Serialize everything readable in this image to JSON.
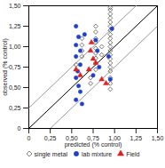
{
  "chart_data": {
    "type": "scatter",
    "x_label": "predicted (% control)",
    "y_label": "observed (% control)",
    "xlim": [
      0,
      1.5
    ],
    "ylim": [
      0,
      1.5
    ],
    "xticks": [
      0,
      {
        "value": 0.25,
        "label": "0,25"
      },
      {
        "value": 0.5,
        "label": "0,50"
      },
      {
        "value": 0.75,
        "label": "0,75"
      },
      {
        "value": 1,
        "label": "1,00"
      },
      {
        "value": 1.25,
        "label": "1,25"
      },
      {
        "value": 1.5,
        "label": "1,50"
      }
    ],
    "yticks": [
      0,
      {
        "value": 0.25,
        "label": "0,25"
      },
      {
        "value": 0.5,
        "label": "0,50"
      },
      {
        "value": 0.75,
        "label": "0,75"
      },
      {
        "value": 1,
        "label": "1,00"
      },
      {
        "value": 1.25,
        "label": "1,25"
      },
      {
        "value": 1.5,
        "label": "1,50"
      }
    ],
    "grid": false,
    "legend": "bottom",
    "reference_lines": [
      {
        "slope": 1,
        "intercept": 0,
        "color": "#000000"
      },
      {
        "slope": 1,
        "intercept": 0.25,
        "color": "#999999"
      },
      {
        "slope": 1,
        "intercept": -0.25,
        "color": "#999999"
      }
    ],
    "series": [
      {
        "name": "single metal",
        "color": "#555555",
        "marker": "open_diamond",
        "x": [
          0.95,
          0.95,
          0.95,
          0.95,
          0.95,
          0.95,
          0.95,
          0.95,
          0.95,
          0.95,
          0.95,
          0.95,
          0.95,
          0.95,
          0.95,
          0.95,
          0.95,
          0.95,
          0.95,
          0.95,
          0.78,
          0.78,
          0.78,
          0.78,
          0.78,
          0.78,
          0.78,
          0.78,
          0.78,
          0.62,
          0.62,
          0.62,
          0.62,
          0.55,
          0.72,
          0.72,
          0.85,
          0.85
        ],
        "values": [
          1.48,
          1.45,
          1.4,
          1.35,
          1.3,
          1.25,
          1.2,
          1.15,
          1.1,
          1.05,
          1.0,
          0.95,
          0.9,
          0.85,
          0.8,
          0.75,
          0.7,
          0.62,
          0.55,
          0.48,
          1.25,
          1.18,
          1.1,
          1.05,
          0.98,
          0.92,
          0.86,
          0.8,
          0.72,
          1.1,
          1.02,
          0.95,
          0.88,
          0.78,
          0.62,
          0.55,
          1.0,
          0.9
        ]
      },
      {
        "name": "lab mixture",
        "color": "#1f3fd0",
        "marker": "circle",
        "x": [
          0.55,
          0.58,
          0.55,
          0.6,
          0.55,
          0.6,
          0.57,
          0.55,
          0.58,
          0.6,
          0.55,
          0.62,
          0.78,
          0.8,
          0.82,
          0.75,
          0.95,
          0.93,
          0.97,
          0.65
        ],
        "values": [
          1.25,
          1.12,
          1.02,
          0.95,
          0.88,
          0.78,
          0.7,
          0.62,
          0.52,
          0.45,
          0.35,
          0.3,
          1.08,
          0.95,
          0.75,
          0.65,
          0.6,
          0.88,
          1.22,
          1.15
        ]
      },
      {
        "name": "Field",
        "color": "#e02020",
        "marker": "triangle",
        "x": [
          0.55,
          0.6,
          0.72,
          0.75,
          0.78,
          0.7,
          0.85,
          0.9,
          0.73
        ],
        "values": [
          0.72,
          0.65,
          0.95,
          0.85,
          0.8,
          0.72,
          0.6,
          0.55,
          1.05
        ]
      }
    ]
  }
}
